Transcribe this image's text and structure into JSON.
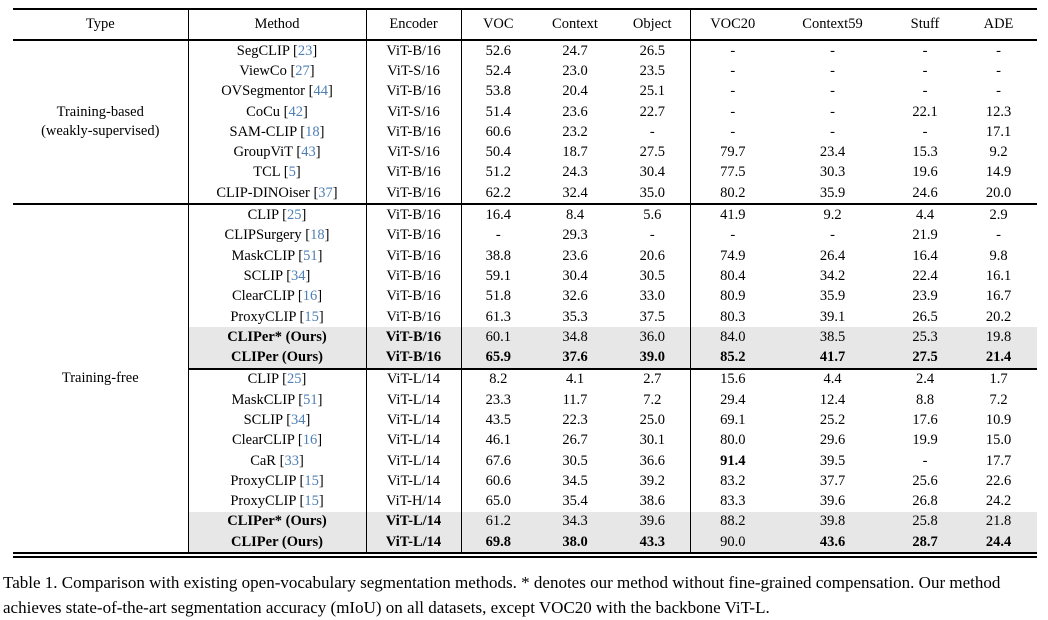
{
  "colors": {
    "citation": "#4d7fb5",
    "highlight_row": "#e7e7e7"
  },
  "caption": "Table 1. Comparison with existing open-vocabulary segmentation methods. * denotes our method without fine-grained compensation. Our method achieves state-of-the-art segmentation accuracy (mIoU) on all datasets, except VOC20 with the backbone ViT-L.",
  "table": {
    "headers": [
      "Type",
      "Method",
      "Encoder",
      "VOC",
      "Context",
      "Object",
      "VOC20",
      "Context59",
      "Stuff",
      "ADE"
    ],
    "sections": [
      {
        "type_lines": [
          "Training-based",
          "(weakly-supervised)"
        ],
        "rows": [
          {
            "method": "SegCLIP",
            "cite": "23",
            "encoder": "ViT-B/16",
            "values": [
              "52.6",
              "24.7",
              "26.5",
              "-",
              "-",
              "-",
              "-"
            ]
          },
          {
            "method": "ViewCo",
            "cite": "27",
            "encoder": "ViT-S/16",
            "values": [
              "52.4",
              "23.0",
              "23.5",
              "-",
              "-",
              "-",
              "-"
            ]
          },
          {
            "method": "OVSegmentor",
            "cite": "44",
            "encoder": "ViT-B/16",
            "values": [
              "53.8",
              "20.4",
              "25.1",
              "-",
              "-",
              "-",
              "-"
            ]
          },
          {
            "method": "CoCu",
            "cite": "42",
            "encoder": "ViT-S/16",
            "values": [
              "51.4",
              "23.6",
              "22.7",
              "-",
              "-",
              "22.1",
              "12.3"
            ]
          },
          {
            "method": "SAM-CLIP",
            "cite": "18",
            "encoder": "ViT-B/16",
            "values": [
              "60.6",
              "23.2",
              "-",
              "-",
              "-",
              "-",
              "17.1"
            ]
          },
          {
            "method": "GroupViT",
            "cite": "43",
            "encoder": "ViT-S/16",
            "values": [
              "50.4",
              "18.7",
              "27.5",
              "79.7",
              "23.4",
              "15.3",
              "9.2"
            ]
          },
          {
            "method": "TCL",
            "cite": "5",
            "encoder": "ViT-B/16",
            "values": [
              "51.2",
              "24.3",
              "30.4",
              "77.5",
              "30.3",
              "19.6",
              "14.9"
            ]
          },
          {
            "method": "CLIP-DINOiser",
            "cite": "37",
            "encoder": "ViT-B/16",
            "values": [
              "62.2",
              "32.4",
              "35.0",
              "80.2",
              "35.9",
              "24.6",
              "20.0"
            ]
          }
        ]
      },
      {
        "type_lines": [
          "Training-free"
        ],
        "rows": [
          {
            "method": "CLIP",
            "cite": "25",
            "encoder": "ViT-B/16",
            "values": [
              "16.4",
              "8.4",
              "5.6",
              "41.9",
              "9.2",
              "4.4",
              "2.9"
            ]
          },
          {
            "method": "CLIPSurgery",
            "cite": "18",
            "encoder": "ViT-B/16",
            "values": [
              "-",
              "29.3",
              "-",
              "-",
              "-",
              "21.9",
              "-"
            ]
          },
          {
            "method": "MaskCLIP",
            "cite": "51",
            "encoder": "ViT-B/16",
            "values": [
              "38.8",
              "23.6",
              "20.6",
              "74.9",
              "26.4",
              "16.4",
              "9.8"
            ]
          },
          {
            "method": "SCLIP",
            "cite": "34",
            "encoder": "ViT-B/16",
            "values": [
              "59.1",
              "30.4",
              "30.5",
              "80.4",
              "34.2",
              "22.4",
              "16.1"
            ]
          },
          {
            "method": "ClearCLIP",
            "cite": "16",
            "encoder": "ViT-B/16",
            "values": [
              "51.8",
              "32.6",
              "33.0",
              "80.9",
              "35.9",
              "23.9",
              "16.7"
            ]
          },
          {
            "method": "ProxyCLIP",
            "cite": "15",
            "encoder": "ViT-B/16",
            "values": [
              "61.3",
              "35.3",
              "37.5",
              "80.3",
              "39.1",
              "26.5",
              "20.2"
            ]
          },
          {
            "method": "CLIPer* (Ours)",
            "cite": null,
            "encoder": "ViT-B/16",
            "method_bold": true,
            "highlight": true,
            "values": [
              "60.1",
              "34.8",
              "36.0",
              "84.0",
              "38.5",
              "25.3",
              "19.8"
            ]
          },
          {
            "method": "CLIPer (Ours)",
            "cite": null,
            "encoder": "ViT-B/16",
            "method_bold": true,
            "highlight": true,
            "values": [
              "65.9",
              "37.6",
              "39.0",
              "85.2",
              "41.7",
              "27.5",
              "21.4"
            ],
            "value_bold": [
              true,
              true,
              true,
              true,
              true,
              true,
              true
            ]
          },
          {
            "method": "CLIP",
            "cite": "25",
            "encoder": "ViT-L/14",
            "rule_above": true,
            "values": [
              "8.2",
              "4.1",
              "2.7",
              "15.6",
              "4.4",
              "2.4",
              "1.7"
            ]
          },
          {
            "method": "MaskCLIP",
            "cite": "51",
            "encoder": "ViT-L/14",
            "values": [
              "23.3",
              "11.7",
              "7.2",
              "29.4",
              "12.4",
              "8.8",
              "7.2"
            ]
          },
          {
            "method": "SCLIP",
            "cite": "34",
            "encoder": "ViT-L/14",
            "values": [
              "43.5",
              "22.3",
              "25.0",
              "69.1",
              "25.2",
              "17.6",
              "10.9"
            ]
          },
          {
            "method": "ClearCLIP",
            "cite": "16",
            "encoder": "ViT-L/14",
            "values": [
              "46.1",
              "26.7",
              "30.1",
              "80.0",
              "29.6",
              "19.9",
              "15.0"
            ]
          },
          {
            "method": "CaR",
            "cite": "33",
            "encoder": "ViT-L/14",
            "values": [
              "67.6",
              "30.5",
              "36.6",
              "91.4",
              "39.5",
              "-",
              "17.7"
            ],
            "value_bold": [
              false,
              false,
              false,
              true,
              false,
              false,
              false
            ]
          },
          {
            "method": "ProxyCLIP",
            "cite": "15",
            "encoder": "ViT-L/14",
            "values": [
              "60.6",
              "34.5",
              "39.2",
              "83.2",
              "37.7",
              "25.6",
              "22.6"
            ]
          },
          {
            "method": "ProxyCLIP",
            "cite": "15",
            "encoder": "ViT-H/14",
            "values": [
              "65.0",
              "35.4",
              "38.6",
              "83.3",
              "39.6",
              "26.8",
              "24.2"
            ]
          },
          {
            "method": "CLIPer* (Ours)",
            "cite": null,
            "encoder": "ViT-L/14",
            "method_bold": true,
            "highlight": true,
            "values": [
              "61.2",
              "34.3",
              "39.6",
              "88.2",
              "39.8",
              "25.8",
              "21.8"
            ]
          },
          {
            "method": "CLIPer (Ours)",
            "cite": null,
            "encoder": "ViT-L/14",
            "method_bold": true,
            "highlight": true,
            "values": [
              "69.8",
              "38.0",
              "43.3",
              "90.0",
              "43.6",
              "28.7",
              "24.4"
            ],
            "value_bold": [
              true,
              true,
              true,
              false,
              true,
              true,
              true
            ]
          }
        ]
      }
    ]
  }
}
